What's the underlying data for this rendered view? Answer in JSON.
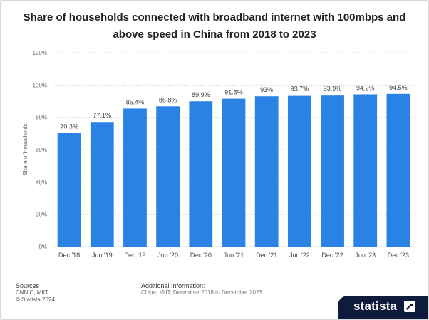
{
  "chart_data": {
    "type": "bar",
    "title": "Share of households connected with broadband internet with 100mbps and above speed in China from 2018 to 2023",
    "ylabel": "Share of households",
    "xlabel": "",
    "categories": [
      "Dec '18",
      "Jun '19",
      "Dec '19",
      "Jun '20",
      "Dec '20",
      "Jun '21",
      "Dec '21",
      "Jun '22",
      "Dec '22",
      "Jun '23",
      "Dec '23"
    ],
    "values": [
      70.3,
      77.1,
      85.4,
      86.8,
      89.9,
      91.5,
      93,
      93.7,
      93.9,
      94.2,
      94.5
    ],
    "value_labels": [
      "70.3%",
      "77.1%",
      "85.4%",
      "86.8%",
      "89.9%",
      "91.5%",
      "93%",
      "93.7%",
      "93.9%",
      "94.2%",
      "94.5%"
    ],
    "ylim": [
      0,
      120
    ],
    "yticks": [
      0,
      20,
      40,
      60,
      80,
      100,
      120
    ],
    "ytick_labels": [
      "0%",
      "20%",
      "40%",
      "60%",
      "80%",
      "100%",
      "120%"
    ],
    "grid": true,
    "bar_color": "#2a82e4"
  },
  "footer": {
    "sources_heading": "Sources",
    "sources_line1": "CNNIC; MIIT",
    "sources_line2": "© Statista 2024",
    "additional_heading": "Additional Information:",
    "additional_text": "China; MIIT; December 2018 to December 2023"
  },
  "brand": {
    "name": "statista",
    "icon": "statista-logo-icon"
  }
}
